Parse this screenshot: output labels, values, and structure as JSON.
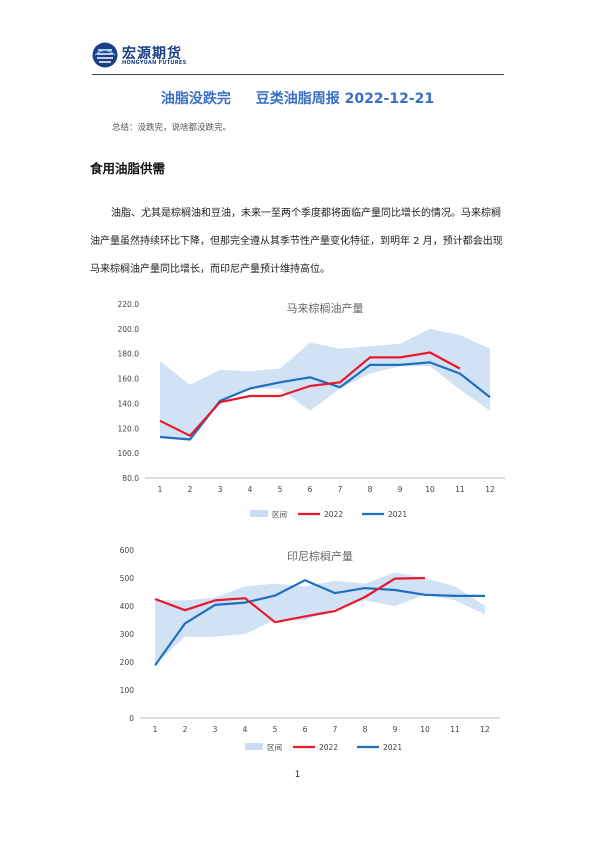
{
  "header": {
    "logo_cn": "宏源期货",
    "logo_en": "HONGYUAN FUTURES"
  },
  "title": {
    "part1": "油脂没跌完",
    "part2": "豆类油脂周报 2022-12-21"
  },
  "summary": "总结：没跌完，说啥都没跌完。",
  "section": {
    "title": "食用油脂供需",
    "paragraph": "油脂、尤其是棕榈油和豆油，未来一至两个季度都将面临产量同比增长的情况。马来棕榈油产量虽然持续环比下降，但那完全遵从其季节性产量变化特征，到明年 2 月，预计都会出现马来棕榈油产量同比增长，而印尼产量预计维持高位。"
  },
  "colors": {
    "band": "#c9ddf2",
    "y2022": "#e8192c",
    "y2021": "#1d6fbf"
  },
  "chart_data": [
    {
      "type": "line",
      "title": "马来棕榈油产量",
      "x": [
        1,
        2,
        3,
        4,
        5,
        6,
        7,
        8,
        9,
        10,
        11,
        12
      ],
      "ylim": [
        80,
        220
      ],
      "yticks": [
        "80.0",
        "100.0",
        "120.0",
        "140.0",
        "160.0",
        "180.0",
        "200.0",
        "220.0"
      ],
      "band": {
        "name": "区间",
        "upper": [
          174,
          155,
          167,
          166,
          168,
          189,
          184,
          186,
          188,
          200,
          195,
          184
        ],
        "lower": [
          113,
          111,
          141,
          152,
          152,
          134,
          152,
          164,
          170,
          170,
          151,
          134
        ]
      },
      "series": [
        {
          "name": "2022",
          "values": [
            126,
            114,
            141,
            146,
            146,
            154,
            157,
            177,
            177,
            181,
            168,
            null
          ]
        },
        {
          "name": "2021",
          "values": [
            113,
            111,
            142,
            152,
            157,
            161,
            153,
            171,
            171,
            173,
            164,
            145
          ]
        }
      ],
      "legend": "bottom"
    },
    {
      "type": "line",
      "title": "印尼棕榈产量",
      "x": [
        1,
        2,
        3,
        4,
        5,
        6,
        7,
        8,
        9,
        10,
        11,
        12
      ],
      "ylim": [
        0,
        600
      ],
      "yticks": [
        "0",
        "100",
        "200",
        "300",
        "400",
        "500",
        "600"
      ],
      "band": {
        "name": "区间",
        "upper": [
          420,
          420,
          430,
          470,
          480,
          470,
          490,
          480,
          520,
          500,
          470,
          400
        ],
        "lower": [
          190,
          290,
          290,
          300,
          350,
          350,
          390,
          420,
          400,
          440,
          420,
          370
        ]
      },
      "series": [
        {
          "name": "2022",
          "values": [
            425,
            385,
            420,
            428,
            342,
            363,
            382,
            432,
            498,
            500,
            null,
            null
          ]
        },
        {
          "name": "2021",
          "values": [
            188,
            338,
            404,
            412,
            437,
            492,
            446,
            464,
            457,
            440,
            436,
            436
          ]
        }
      ],
      "legend": "bottom"
    }
  ],
  "page_number": "1"
}
